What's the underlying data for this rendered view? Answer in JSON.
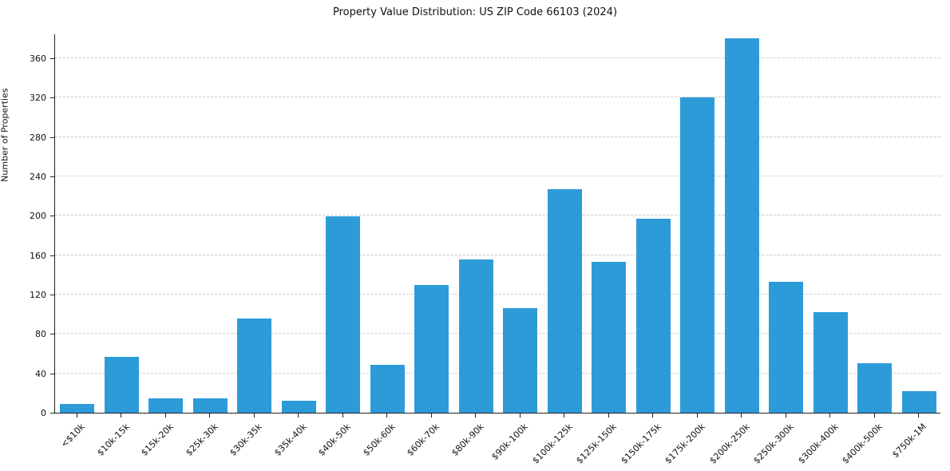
{
  "chart_data": {
    "type": "bar",
    "title": "Property Value Distribution: US ZIP Code 66103 (2024)",
    "xlabel": "",
    "ylabel": "Number of Properties",
    "categories": [
      "<$10k",
      "$10k-15k",
      "$15k-20k",
      "$25k-30k",
      "$30k-35k",
      "$35k-40k",
      "$40k-50k",
      "$50k-60k",
      "$60k-70k",
      "$80k-90k",
      "$90k-100k",
      "$100k-125k",
      "$125k-150k",
      "$150k-175k",
      "$175k-200k",
      "$200k-250k",
      "$250k-300k",
      "$300k-400k",
      "$400k-500k",
      "$750k-1M"
    ],
    "values": [
      9,
      57,
      15,
      15,
      96,
      12,
      199,
      49,
      130,
      156,
      106,
      227,
      153,
      197,
      320,
      380,
      133,
      102,
      50,
      22
    ],
    "ylim": [
      0,
      385
    ],
    "yticks": [
      0,
      40,
      80,
      120,
      160,
      200,
      240,
      280,
      320,
      360
    ],
    "bar_color": "#2e9bd9",
    "grid": "horizontal-dashed",
    "legend": "none"
  }
}
